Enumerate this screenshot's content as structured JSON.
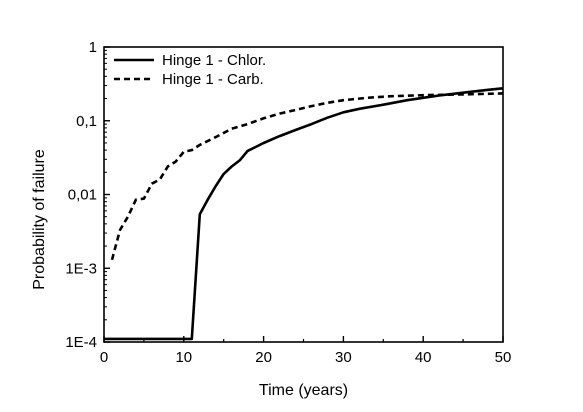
{
  "chart_data": {
    "type": "line",
    "xlabel": "Time (years)",
    "ylabel": "Probability of failure",
    "xlim": [
      0,
      50
    ],
    "ylim": [
      0.0001,
      1
    ],
    "yscale": "log",
    "grid": false,
    "legend_position": "top-left",
    "x_ticks": [
      {
        "value": 0,
        "label": "0"
      },
      {
        "value": 10,
        "label": "10"
      },
      {
        "value": 20,
        "label": "20"
      },
      {
        "value": 30,
        "label": "30"
      },
      {
        "value": 40,
        "label": "40"
      },
      {
        "value": 50,
        "label": "50"
      }
    ],
    "y_ticks": [
      {
        "value": 0.0001,
        "label": "1E-4"
      },
      {
        "value": 0.001,
        "label": "1E-3"
      },
      {
        "value": 0.01,
        "label": "0,01"
      },
      {
        "value": 0.1,
        "label": "0,1"
      },
      {
        "value": 1,
        "label": "1"
      }
    ],
    "series": [
      {
        "name": "Hinge 1 - Chlor.",
        "style": "solid",
        "color": "#000000",
        "points": [
          [
            0,
            0.00011
          ],
          [
            11,
            0.00011
          ],
          [
            12,
            0.0054
          ],
          [
            13,
            0.0085
          ],
          [
            14,
            0.013
          ],
          [
            15,
            0.019
          ],
          [
            16,
            0.024
          ],
          [
            17,
            0.029
          ],
          [
            18,
            0.039
          ],
          [
            19,
            0.044
          ],
          [
            20,
            0.05
          ],
          [
            22,
            0.062
          ],
          [
            24,
            0.075
          ],
          [
            26,
            0.09
          ],
          [
            28,
            0.11
          ],
          [
            30,
            0.13
          ],
          [
            32,
            0.145
          ],
          [
            35,
            0.165
          ],
          [
            38,
            0.19
          ],
          [
            40,
            0.205
          ],
          [
            42,
            0.22
          ],
          [
            45,
            0.24
          ],
          [
            48,
            0.262
          ],
          [
            50,
            0.275
          ]
        ]
      },
      {
        "name": "Hinge 1 - Carb.",
        "style": "dashed",
        "color": "#000000",
        "points": [
          [
            1,
            0.0013
          ],
          [
            2,
            0.0033
          ],
          [
            3,
            0.005
          ],
          [
            4,
            0.0085
          ],
          [
            5,
            0.0088
          ],
          [
            6,
            0.014
          ],
          [
            7,
            0.016
          ],
          [
            8,
            0.024
          ],
          [
            9,
            0.028
          ],
          [
            10,
            0.038
          ],
          [
            11,
            0.04
          ],
          [
            12,
            0.047
          ],
          [
            14,
            0.06
          ],
          [
            16,
            0.078
          ],
          [
            18,
            0.09
          ],
          [
            20,
            0.108
          ],
          [
            22,
            0.125
          ],
          [
            24,
            0.14
          ],
          [
            26,
            0.158
          ],
          [
            28,
            0.175
          ],
          [
            30,
            0.19
          ],
          [
            33,
            0.205
          ],
          [
            36,
            0.215
          ],
          [
            40,
            0.222
          ],
          [
            45,
            0.228
          ],
          [
            50,
            0.235
          ]
        ]
      }
    ]
  }
}
